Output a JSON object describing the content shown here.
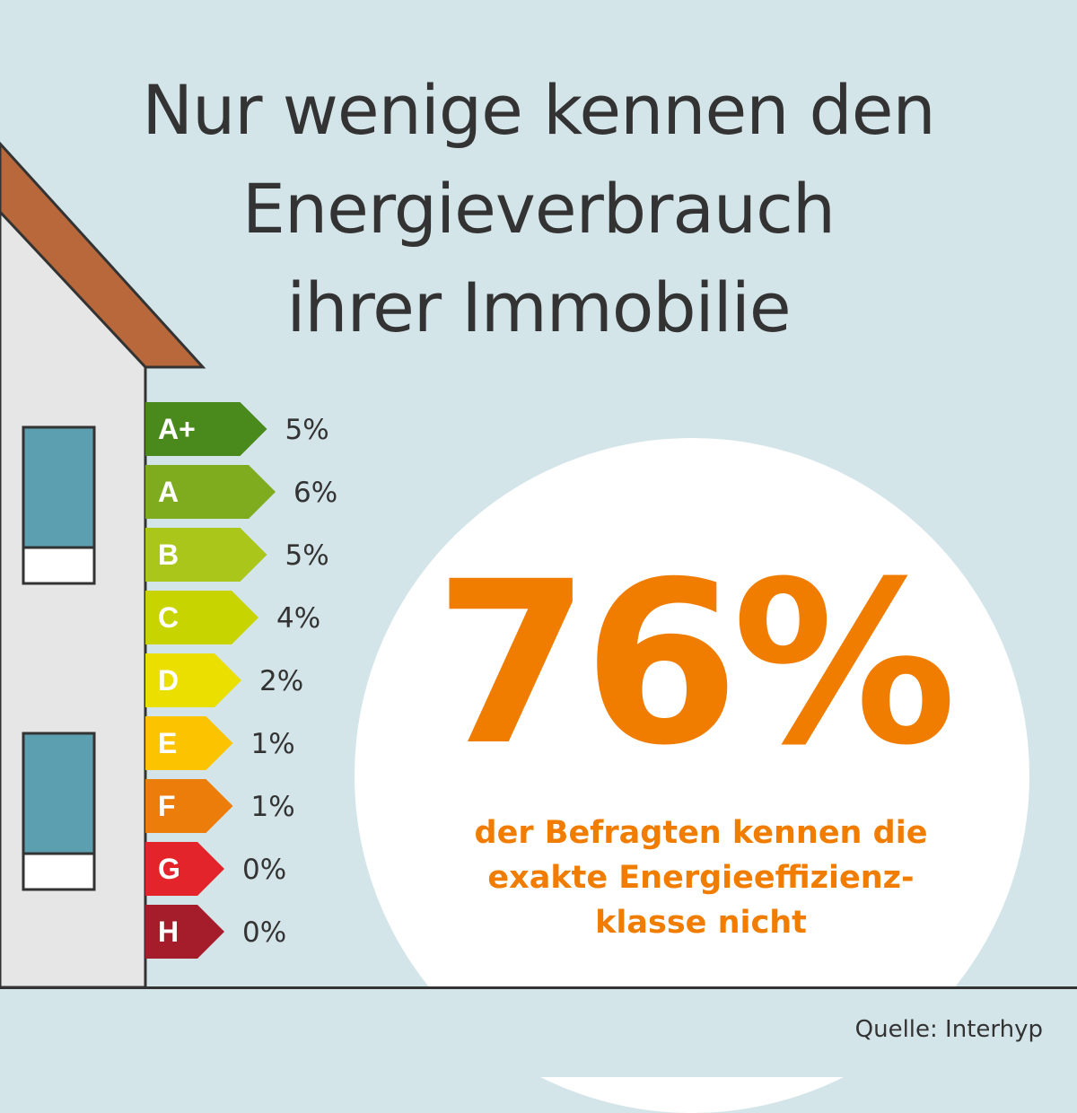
{
  "title_lines": [
    "Nur wenige kennen den",
    "Energieverbrauch",
    "ihrer Immobilie"
  ],
  "highlight": {
    "value": "76%",
    "text_lines": [
      "der Befragten kennen die",
      "exakte Energieeffizienz-",
      "klasse nicht"
    ]
  },
  "source": "Quelle: Interhyp",
  "colors": {
    "background": "#d4e5ea",
    "accent": "#f07d00",
    "roof": "#b8683a",
    "wall": "#e6e6e6",
    "window": "#5b9fb0"
  },
  "chart_data": {
    "type": "bar",
    "orientation": "horizontal",
    "categories": [
      "A+",
      "A",
      "B",
      "C",
      "D",
      "E",
      "F",
      "G",
      "H"
    ],
    "values": [
      5,
      6,
      5,
      4,
      2,
      1,
      1,
      0,
      0
    ],
    "value_labels": [
      "5%",
      "6%",
      "5%",
      "4%",
      "2%",
      "1%",
      "1%",
      "0%",
      "0%"
    ],
    "colors": [
      "#4a8a1c",
      "#7fab1f",
      "#abc61b",
      "#c8d400",
      "#ebdf00",
      "#fcc400",
      "#ed7d0a",
      "#e3242b",
      "#a51d2a"
    ]
  }
}
